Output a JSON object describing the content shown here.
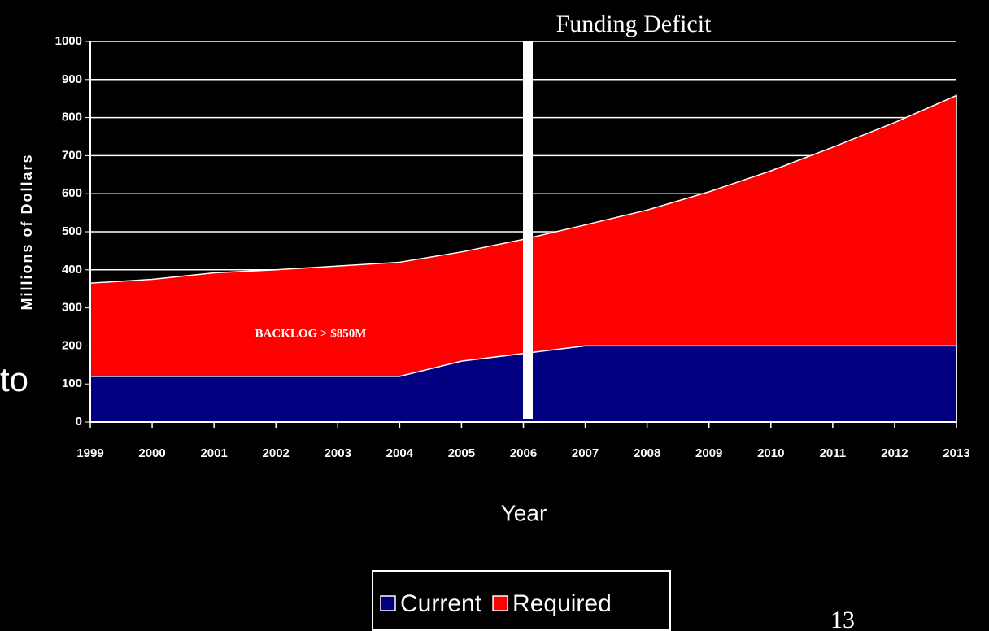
{
  "chart_data": {
    "type": "area",
    "y_label": "Millions of Dollars",
    "x_label": "Year",
    "categories": [
      "1999",
      "2000",
      "2001",
      "2002",
      "2003",
      "2004",
      "2005",
      "2006",
      "2007",
      "2008",
      "2009",
      "2010",
      "2011",
      "2012",
      "2013"
    ],
    "series": [
      {
        "name": "Current",
        "color": "#000080",
        "values": [
          120,
          120,
          120,
          120,
          120,
          120,
          160,
          180,
          200,
          200,
          200,
          200,
          200,
          200,
          200
        ]
      },
      {
        "name": "Required",
        "color": "#ff0000",
        "values": [
          365,
          375,
          392,
          400,
          410,
          420,
          447,
          480,
          518,
          557,
          605,
          660,
          722,
          787,
          858
        ]
      }
    ],
    "ylim": [
      0,
      1000
    ],
    "yticks": [
      0,
      100,
      200,
      300,
      400,
      500,
      600,
      700,
      800,
      900,
      1000
    ],
    "grid": true,
    "annotations": [
      "Funding Deficit",
      "BACKLOG > $850M",
      "to",
      "13"
    ]
  }
}
